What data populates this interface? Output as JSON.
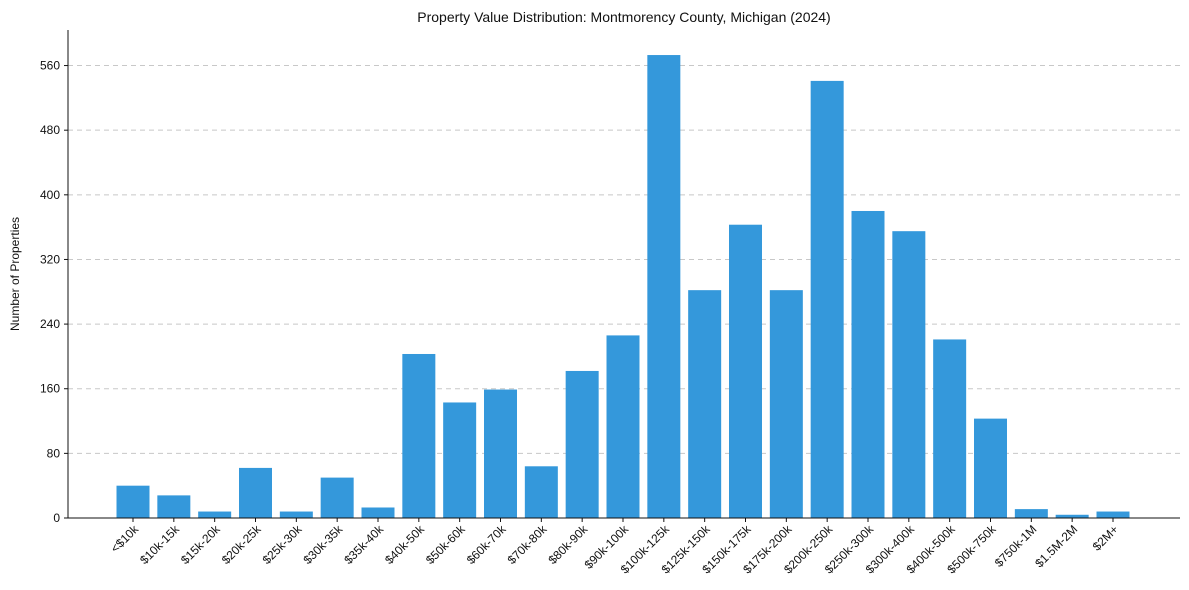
{
  "chart_data": {
    "type": "bar",
    "title": "Property Value Distribution: Montmorency County, Michigan (2024)",
    "xlabel": "",
    "ylabel": "Number of Properties",
    "categories": [
      "<$10k",
      "$10k-15k",
      "$15k-20k",
      "$20k-25k",
      "$25k-30k",
      "$30k-35k",
      "$35k-40k",
      "$40k-50k",
      "$50k-60k",
      "$60k-70k",
      "$70k-80k",
      "$80k-90k",
      "$90k-100k",
      "$100k-125k",
      "$125k-150k",
      "$150k-175k",
      "$175k-200k",
      "$200k-250k",
      "$250k-300k",
      "$300k-400k",
      "$400k-500k",
      "$500k-750k",
      "$750k-1M",
      "$1.5M-2M",
      "$2M+"
    ],
    "values": [
      40,
      28,
      8,
      62,
      8,
      50,
      13,
      203,
      143,
      159,
      64,
      182,
      226,
      573,
      282,
      363,
      282,
      541,
      380,
      355,
      221,
      123,
      11,
      4,
      8
    ],
    "ylim": [
      0,
      604
    ],
    "yticks": [
      0,
      80,
      160,
      240,
      320,
      400,
      480,
      560
    ],
    "yticks_labels": [
      "0",
      "80",
      "160",
      "240",
      "320",
      "400",
      "480",
      "560"
    ],
    "grid": "horizontal-dashed",
    "bar_color": "#3498db"
  }
}
